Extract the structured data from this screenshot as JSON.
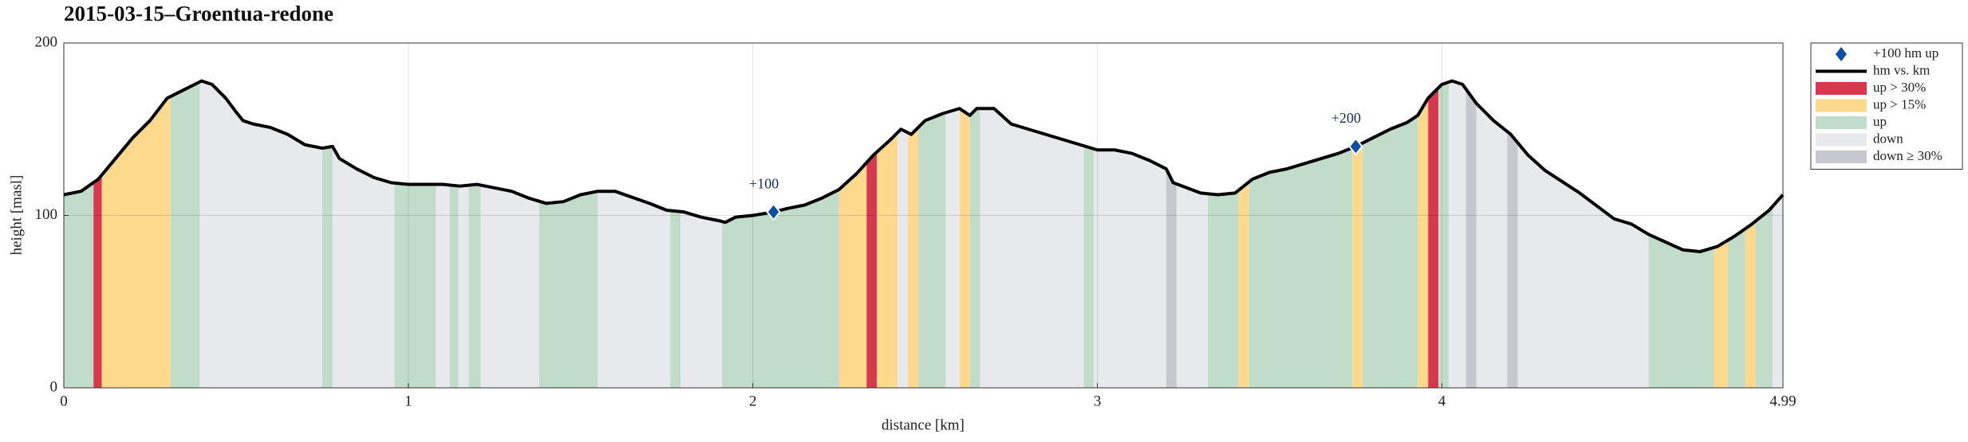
{
  "chart_data": {
    "type": "line",
    "title": "2015-03-15–Groentua-redone",
    "x_label": "distance [km]",
    "y_label": "height [masl]",
    "xlim": [
      0,
      4.99
    ],
    "ylim": [
      0,
      200
    ],
    "xticks": [
      0,
      1,
      2,
      3,
      4,
      4.99
    ],
    "yticks": [
      0,
      100,
      200
    ],
    "grid": true,
    "legend": "outside-right",
    "series": [
      {
        "name": "+100 hm up",
        "color": "#0b4fa8",
        "marker": "diamond",
        "x": [
          2.06,
          3.75
        ],
        "values": [
          102,
          140
        ],
        "labels": [
          "+100",
          "+200"
        ]
      },
      {
        "name": "hm vs. km",
        "color": "#000000",
        "x": [
          0,
          0.05,
          0.1,
          0.15,
          0.2,
          0.25,
          0.3,
          0.35,
          0.4,
          0.43,
          0.47,
          0.5,
          0.52,
          0.55,
          0.6,
          0.65,
          0.7,
          0.75,
          0.78,
          0.8,
          0.85,
          0.9,
          0.95,
          1.0,
          1.1,
          1.15,
          1.2,
          1.3,
          1.35,
          1.4,
          1.45,
          1.5,
          1.55,
          1.6,
          1.7,
          1.75,
          1.8,
          1.85,
          1.9,
          1.92,
          1.95,
          2.0,
          2.06,
          2.1,
          2.15,
          2.2,
          2.25,
          2.3,
          2.35,
          2.4,
          2.43,
          2.46,
          2.5,
          2.55,
          2.6,
          2.63,
          2.65,
          2.7,
          2.75,
          2.8,
          2.9,
          3.0,
          3.05,
          3.1,
          3.15,
          3.2,
          3.22,
          3.3,
          3.35,
          3.4,
          3.45,
          3.5,
          3.55,
          3.6,
          3.7,
          3.75,
          3.8,
          3.85,
          3.9,
          3.93,
          3.96,
          4.0,
          4.03,
          4.06,
          4.1,
          4.15,
          4.2,
          4.25,
          4.3,
          4.4,
          4.5,
          4.55,
          4.6,
          4.7,
          4.75,
          4.8,
          4.85,
          4.9,
          4.95,
          4.99
        ],
        "values": [
          112,
          114,
          121,
          133,
          145,
          155,
          168,
          173,
          178,
          176,
          168,
          160,
          155,
          153,
          151,
          147,
          141,
          139,
          140,
          133,
          127,
          122,
          119,
          118,
          118,
          117,
          118,
          114,
          110,
          107,
          108,
          112,
          114,
          114,
          107,
          103,
          102,
          99,
          97,
          96,
          99,
          100,
          102,
          104,
          106,
          110,
          115,
          124,
          135,
          144,
          150,
          147,
          155,
          159,
          162,
          158,
          162,
          162,
          153,
          150,
          144,
          138,
          138,
          136,
          132,
          127,
          119,
          113,
          112,
          113,
          121,
          125,
          127,
          130,
          136,
          140,
          145,
          150,
          154,
          158,
          168,
          176,
          178,
          176,
          165,
          155,
          147,
          135,
          126,
          113,
          98,
          95,
          89,
          80,
          79,
          82,
          88,
          95,
          103,
          112
        ]
      },
      {
        "name": "up > 30%",
        "color": "#d7384e",
        "ranges": [
          [
            0.086,
            0.11
          ],
          [
            2.33,
            2.36
          ],
          [
            3.96,
            3.99
          ]
        ]
      },
      {
        "name": "up > 15%",
        "color": "#fdd98e",
        "ranges": [
          [
            0.11,
            0.31
          ],
          [
            2.25,
            2.33
          ],
          [
            2.36,
            2.42
          ],
          [
            2.45,
            2.48
          ],
          [
            2.6,
            2.63
          ],
          [
            3.41,
            3.44
          ],
          [
            3.74,
            3.77
          ],
          [
            3.93,
            3.96
          ],
          [
            4.79,
            4.83
          ],
          [
            4.88,
            4.91
          ]
        ]
      },
      {
        "name": "up",
        "color": "#c2dcca",
        "ranges": [
          [
            0,
            0.086
          ],
          [
            0.31,
            0.395
          ],
          [
            0.75,
            0.78
          ],
          [
            0.96,
            1.08
          ],
          [
            1.12,
            1.145
          ],
          [
            1.175,
            1.21
          ],
          [
            1.38,
            1.55
          ],
          [
            1.76,
            1.79
          ],
          [
            1.91,
            2.25
          ],
          [
            2.48,
            2.56
          ],
          [
            2.63,
            2.66
          ],
          [
            2.96,
            2.99
          ],
          [
            3.32,
            3.41
          ],
          [
            3.44,
            3.74
          ],
          [
            3.77,
            3.93
          ],
          [
            3.99,
            4.02
          ],
          [
            4.6,
            4.79
          ],
          [
            4.83,
            4.88
          ],
          [
            4.91,
            4.96
          ]
        ]
      },
      {
        "name": "down",
        "color": "#e8e9ec",
        "ranges": [
          [
            0.395,
            0.75
          ],
          [
            0.78,
            0.96
          ],
          [
            1.08,
            1.12
          ],
          [
            1.145,
            1.175
          ],
          [
            1.21,
            1.38
          ],
          [
            1.55,
            1.76
          ],
          [
            1.79,
            1.91
          ],
          [
            2.42,
            2.45
          ],
          [
            2.56,
            2.6
          ],
          [
            2.66,
            2.96
          ],
          [
            2.99,
            3.2
          ],
          [
            3.23,
            3.32
          ],
          [
            4.02,
            4.07
          ],
          [
            4.1,
            4.19
          ],
          [
            4.22,
            4.6
          ],
          [
            4.96,
            4.99
          ]
        ]
      },
      {
        "name": "down ≥ 30%",
        "color": "#c7c8cf",
        "ranges": [
          [
            3.2,
            3.23
          ],
          [
            4.07,
            4.1
          ],
          [
            4.19,
            4.22
          ]
        ]
      }
    ]
  }
}
